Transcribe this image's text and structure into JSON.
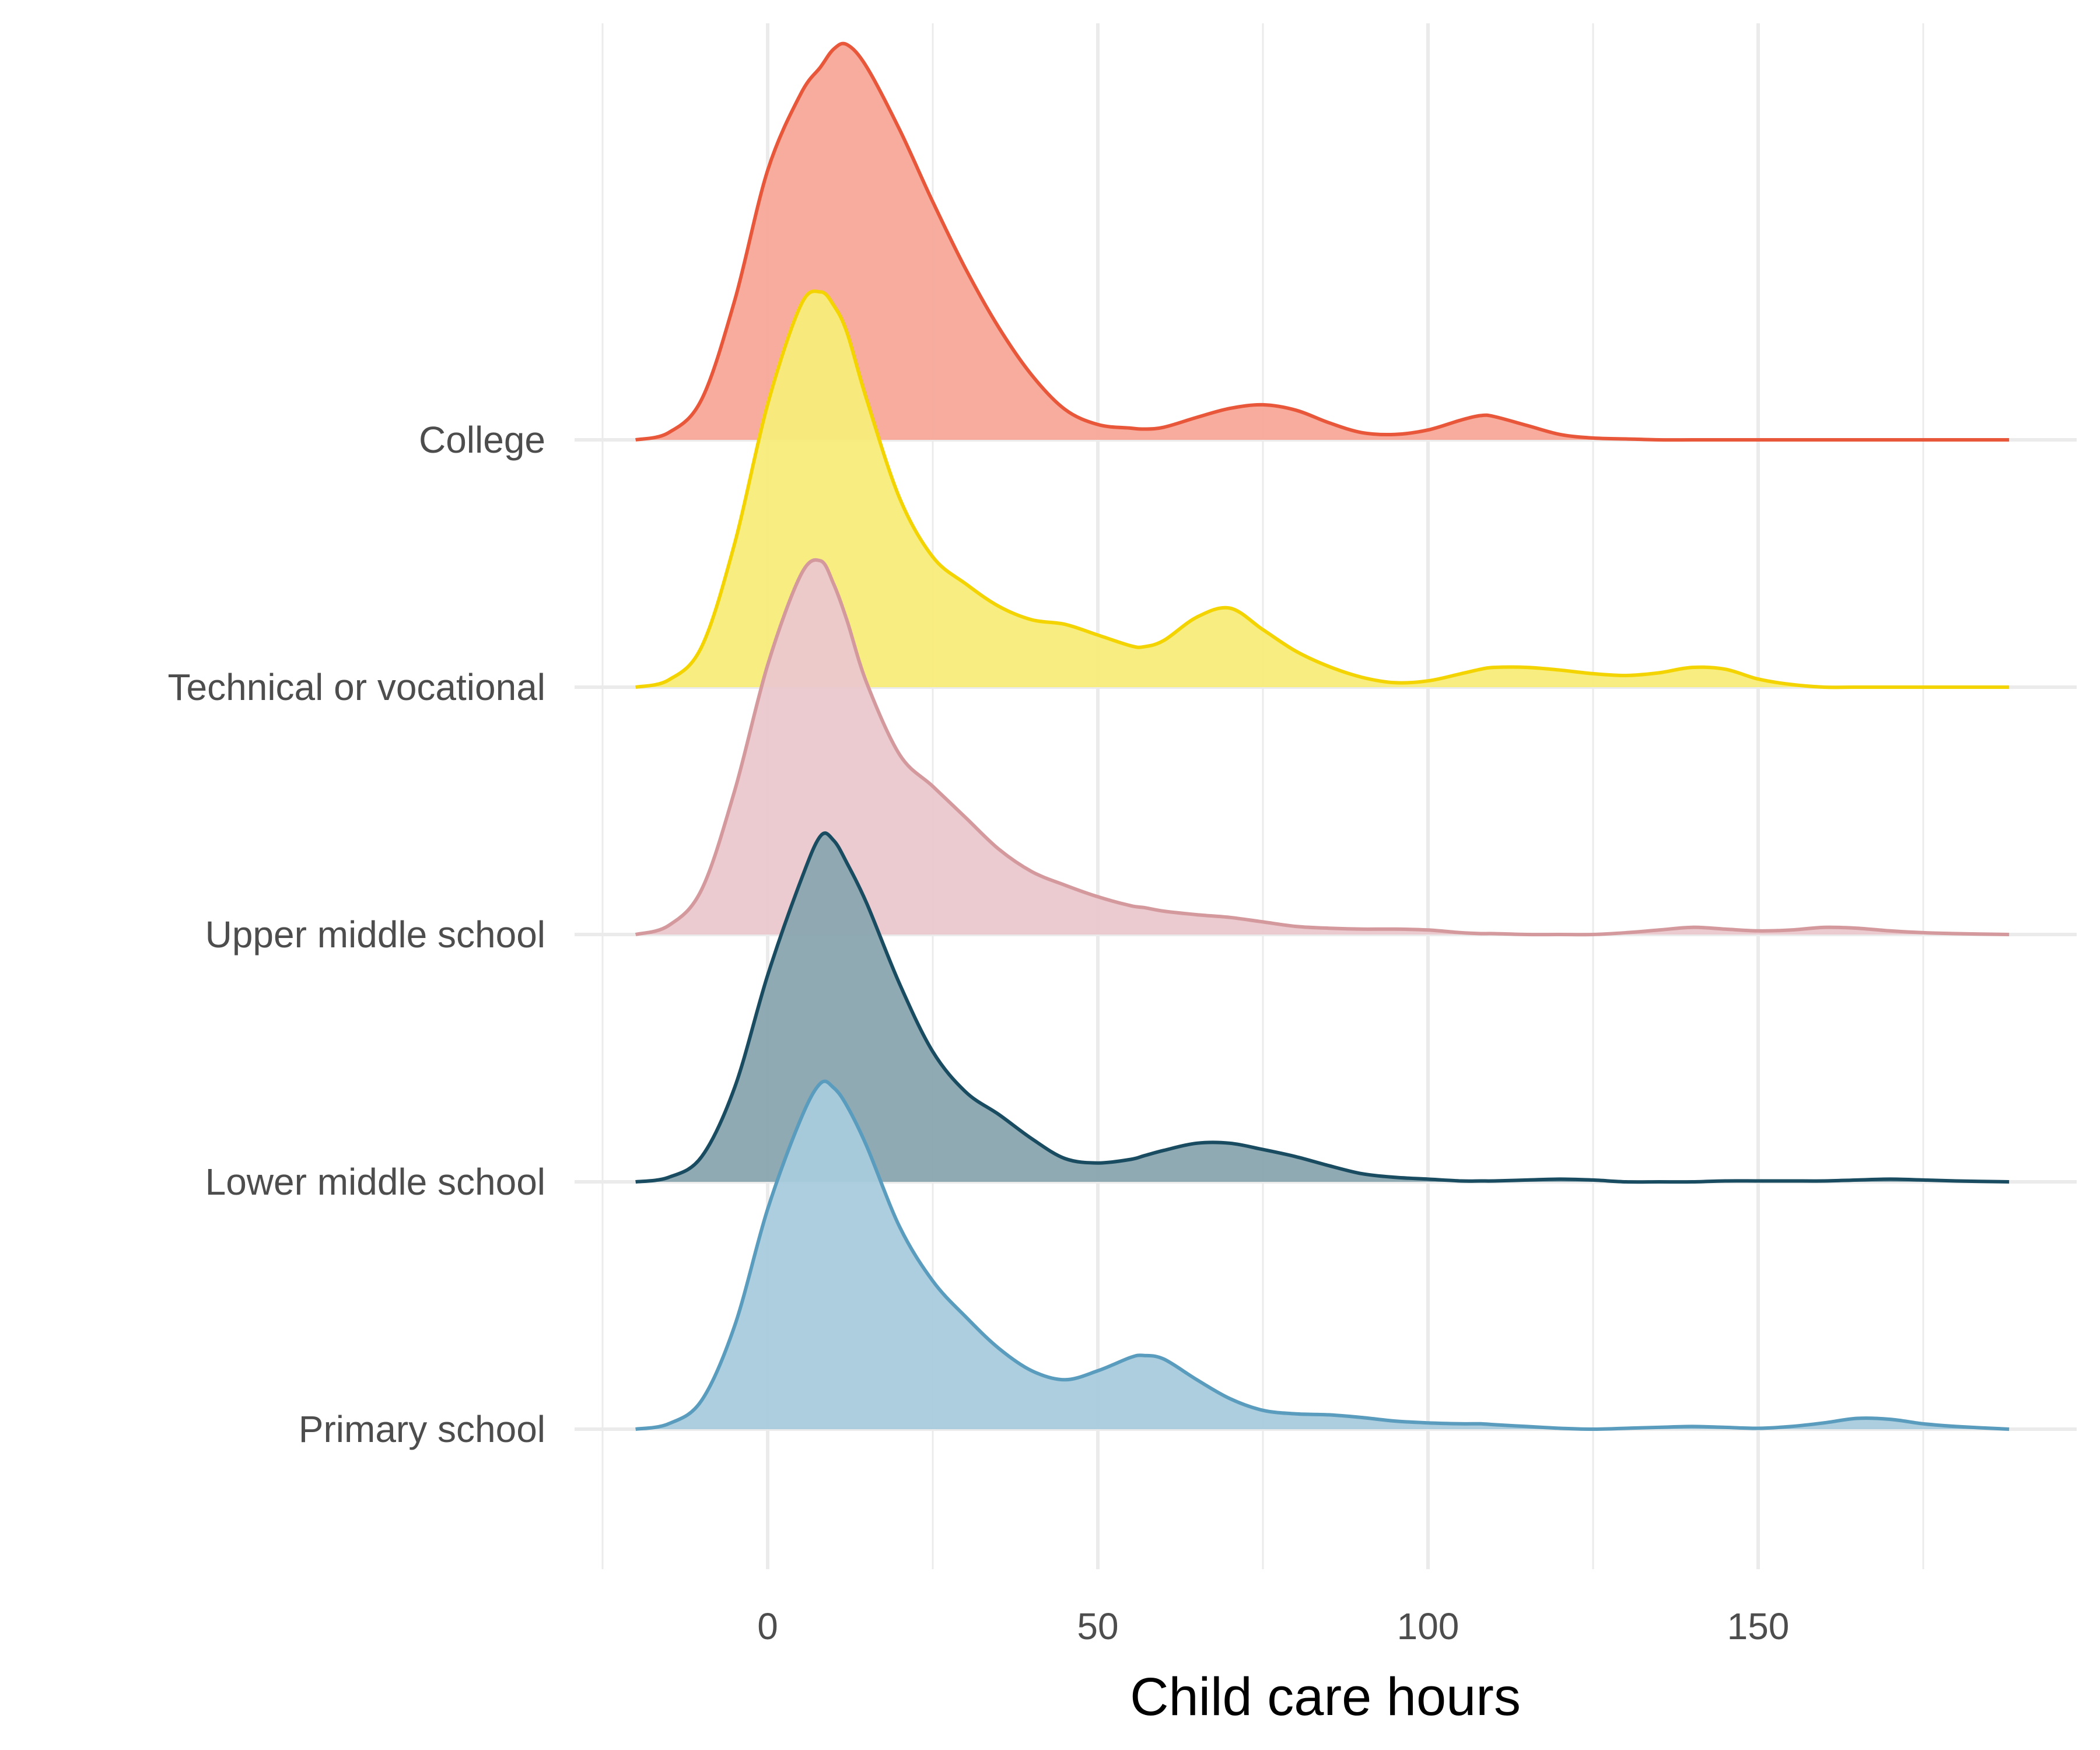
{
  "chart_data": {
    "type": "area",
    "subtype": "ridgeline-density",
    "xlabel": "Child care hours",
    "ylabel": "",
    "xlim": [
      -20,
      188
    ],
    "x_ticks": [
      0,
      50,
      100,
      150
    ],
    "grid": true,
    "legend": "none",
    "x": [
      -20,
      -15,
      -10,
      -5,
      0,
      5,
      8,
      10,
      12,
      15,
      20,
      25,
      30,
      35,
      40,
      45,
      50,
      55,
      57,
      60,
      65,
      70,
      75,
      80,
      85,
      90,
      95,
      100,
      105,
      108,
      110,
      115,
      120,
      125,
      130,
      135,
      140,
      145,
      150,
      155,
      160,
      165,
      170,
      175,
      180,
      188
    ],
    "series": [
      {
        "name": "Primary school",
        "color": "#5a9cbd",
        "fill": "#a9cbdc",
        "values": [
          0.0,
          0.06,
          0.32,
          1.15,
          2.45,
          3.45,
          3.85,
          3.8,
          3.6,
          3.15,
          2.25,
          1.65,
          1.25,
          0.9,
          0.65,
          0.55,
          0.65,
          0.8,
          0.82,
          0.78,
          0.55,
          0.34,
          0.21,
          0.17,
          0.16,
          0.13,
          0.09,
          0.07,
          0.06,
          0.06,
          0.05,
          0.03,
          0.01,
          0.0,
          0.01,
          0.02,
          0.03,
          0.02,
          0.01,
          0.03,
          0.07,
          0.12,
          0.11,
          0.06,
          0.03,
          0.0
        ]
      },
      {
        "name": "Lower middle school",
        "color": "#1a4c61",
        "fill": "#8aa5b0",
        "values": [
          0.0,
          0.05,
          0.28,
          1.05,
          2.3,
          3.35,
          3.85,
          3.8,
          3.55,
          3.1,
          2.2,
          1.45,
          1.0,
          0.75,
          0.48,
          0.26,
          0.21,
          0.25,
          0.29,
          0.35,
          0.43,
          0.43,
          0.36,
          0.28,
          0.18,
          0.09,
          0.05,
          0.03,
          0.01,
          0.01,
          0.01,
          0.02,
          0.03,
          0.02,
          0.0,
          0.0,
          0.0,
          0.01,
          0.01,
          0.01,
          0.01,
          0.02,
          0.03,
          0.02,
          0.01,
          0.0
        ]
      },
      {
        "name": "Upper middle school",
        "color": "#d4999d",
        "fill": "#eac8cc",
        "values": [
          0.0,
          0.1,
          0.5,
          1.6,
          3.0,
          4.0,
          4.16,
          3.9,
          3.5,
          2.8,
          2.0,
          1.65,
          1.3,
          0.95,
          0.7,
          0.55,
          0.42,
          0.32,
          0.3,
          0.26,
          0.22,
          0.19,
          0.14,
          0.09,
          0.07,
          0.06,
          0.06,
          0.05,
          0.02,
          0.01,
          0.01,
          0.0,
          0.0,
          0.0,
          0.02,
          0.05,
          0.08,
          0.06,
          0.04,
          0.05,
          0.08,
          0.07,
          0.04,
          0.02,
          0.01,
          0.0
        ]
      },
      {
        "name": "Technical or vocational",
        "color": "#f4d400",
        "fill": "#f8ec7a",
        "values": [
          0.0,
          0.08,
          0.45,
          1.6,
          3.15,
          4.25,
          4.4,
          4.25,
          3.95,
          3.2,
          2.1,
          1.45,
          1.15,
          0.9,
          0.75,
          0.7,
          0.58,
          0.46,
          0.45,
          0.52,
          0.78,
          0.88,
          0.64,
          0.4,
          0.23,
          0.11,
          0.05,
          0.07,
          0.15,
          0.2,
          0.22,
          0.22,
          0.19,
          0.15,
          0.13,
          0.16,
          0.22,
          0.2,
          0.09,
          0.03,
          0.0,
          0.0,
          0.0,
          0.0,
          0.0,
          0.0
        ]
      },
      {
        "name": "College",
        "color": "#e9573a",
        "fill": "#f7a899",
        "values": [
          0.0,
          0.08,
          0.45,
          1.55,
          3.0,
          3.85,
          4.15,
          4.35,
          4.4,
          4.15,
          3.45,
          2.65,
          1.9,
          1.25,
          0.72,
          0.34,
          0.17,
          0.13,
          0.12,
          0.14,
          0.25,
          0.35,
          0.39,
          0.33,
          0.19,
          0.08,
          0.06,
          0.11,
          0.22,
          0.27,
          0.26,
          0.16,
          0.06,
          0.02,
          0.01,
          0.0,
          0.0,
          0.0,
          0.0,
          0.0,
          0.0,
          0.0,
          0.0,
          0.0,
          0.0,
          0.0
        ]
      }
    ]
  }
}
